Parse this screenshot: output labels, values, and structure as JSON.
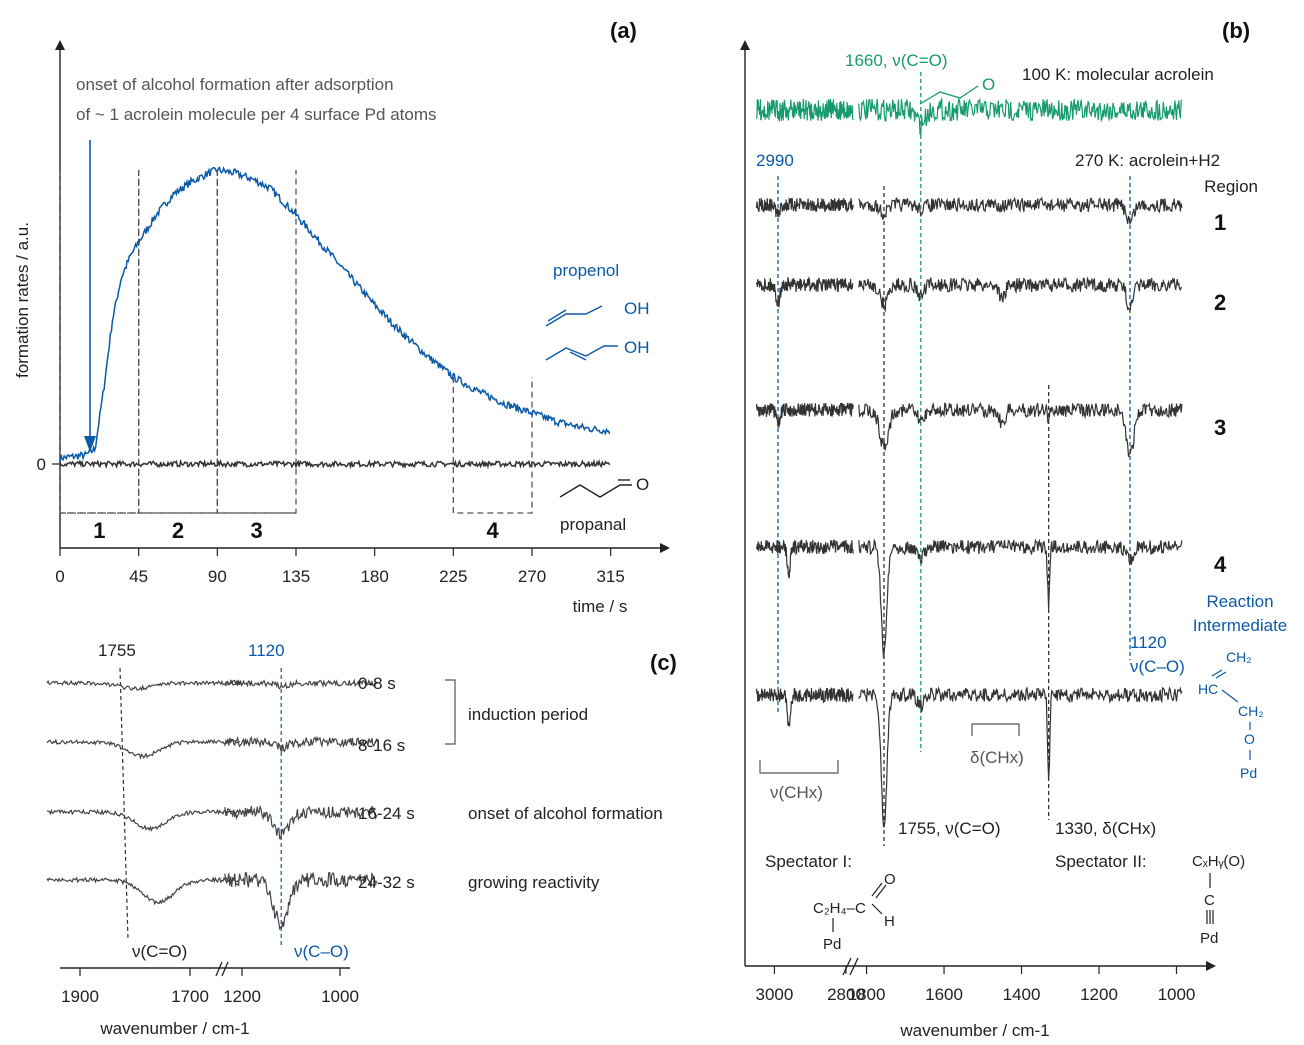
{
  "chart_data": [
    {
      "panel": "(a)",
      "type": "line",
      "xlabel": "time / s",
      "ylabel": "formation rates / a.u.",
      "xlim": [
        0,
        330
      ],
      "x_ticks": [
        "0",
        "45",
        "90",
        "135",
        "180",
        "225",
        "270",
        "315"
      ],
      "y_ticks": [
        "0"
      ],
      "annotation_lines": [
        "onset of alcohol formation after adsorption",
        "of ~ 1 acrolein molecule per 4 surface Pd atoms"
      ],
      "regions": [
        {
          "label": "1",
          "from": 0,
          "to": 45
        },
        {
          "label": "2",
          "from": 45,
          "to": 90
        },
        {
          "label": "3",
          "from": 90,
          "to": 135
        },
        {
          "label": "4",
          "from": 225,
          "to": 270
        }
      ],
      "series": [
        {
          "name": "propenol",
          "color": "#0b5aa8",
          "x": [
            0,
            15,
            20,
            25,
            30,
            35,
            40,
            45,
            55,
            65,
            75,
            85,
            90,
            100,
            110,
            120,
            135,
            150,
            165,
            180,
            195,
            210,
            225,
            240,
            255,
            270,
            285,
            300,
            315
          ],
          "y": [
            0.02,
            0.03,
            0.05,
            0.25,
            0.48,
            0.62,
            0.69,
            0.74,
            0.83,
            0.9,
            0.94,
            0.97,
            0.98,
            0.97,
            0.95,
            0.92,
            0.83,
            0.73,
            0.63,
            0.53,
            0.44,
            0.36,
            0.29,
            0.24,
            0.2,
            0.17,
            0.14,
            0.12,
            0.11
          ]
        },
        {
          "name": "propanal",
          "color": "#333333",
          "x": [
            0,
            315
          ],
          "y": [
            0,
            0
          ]
        }
      ],
      "molecule_labels": [
        "OH",
        "OH",
        "O"
      ],
      "arrow_at": 20
    },
    {
      "panel": "(b)",
      "type": "line",
      "xlabel": "wavenumber / cm-1",
      "x_ticks": [
        "3000",
        "2800",
        "1800",
        "1600",
        "1400",
        "1200",
        "1000"
      ],
      "header_labels": {
        "green_peak": "1660, ν(C=O)",
        "top": "100 K: molecular acrolein",
        "reaction": "270 K:  acrolein+H2",
        "region": "Region",
        "p2990": "2990"
      },
      "traces": [
        {
          "label": "",
          "color": "#159b6c",
          "peaks": [
            [
              1660,
              0.5,
              16
            ]
          ]
        },
        {
          "label": "1",
          "color": "#333333",
          "peaks": [
            [
              2990,
              0.35,
              8
            ],
            [
              1755,
              0.3,
              14
            ],
            [
              1660,
              0.15,
              12
            ],
            [
              1120,
              0.6,
              12
            ]
          ]
        },
        {
          "label": "2",
          "color": "#333333",
          "peaks": [
            [
              2990,
              0.6,
              8
            ],
            [
              1755,
              0.7,
              14
            ],
            [
              1660,
              0.4,
              12
            ],
            [
              1450,
              0.5,
              10
            ],
            [
              1120,
              0.8,
              12
            ]
          ]
        },
        {
          "label": "3",
          "color": "#333333",
          "peaks": [
            [
              2990,
              0.5,
              8
            ],
            [
              1755,
              1.3,
              16
            ],
            [
              1660,
              0.4,
              12
            ],
            [
              1450,
              0.5,
              10
            ],
            [
              1330,
              0.3,
              4
            ],
            [
              1120,
              1.6,
              14
            ]
          ]
        },
        {
          "label": "4",
          "color": "#333333",
          "peaks": [
            [
              2960,
              0.9,
              6
            ],
            [
              1755,
              3.8,
              10
            ],
            [
              1660,
              0.4,
              12
            ],
            [
              1330,
              2.0,
              4
            ],
            [
              1120,
              0.5,
              12
            ]
          ]
        },
        {
          "label": "",
          "color": "#333333",
          "peaks": [
            [
              2960,
              1.2,
              6
            ],
            [
              1755,
              4.8,
              10
            ],
            [
              1660,
              0.4,
              12
            ],
            [
              1330,
              3.0,
              4
            ]
          ]
        }
      ],
      "annotations": {
        "nu_chx": "ν(CHx)",
        "delta_chx": "δ(CHx)",
        "p1755": "1755, ν(C=O)",
        "p1330": "1330, δ(CHx)",
        "p1120": "1120",
        "nu_co": "ν(C–O)",
        "reaction_intermediate_1": "Reaction",
        "reaction_intermediate_2": "Intermediate",
        "spectator1": "Spectator I:",
        "spectator2": "Spectator II:"
      }
    },
    {
      "panel": "(c)",
      "type": "line",
      "xlabel": "wavenumber / cm-1",
      "x_ticks": [
        "1900",
        "1700",
        "1200",
        "1000"
      ],
      "traces": [
        {
          "label": "0-8 s",
          "depth_1755": 0.2,
          "depth_1120": 0.1
        },
        {
          "label": "8-16 s",
          "depth_1755": 0.5,
          "depth_1120": 0.2
        },
        {
          "label": "16-24 s",
          "depth_1755": 0.6,
          "depth_1120": 0.8
        },
        {
          "label": "24-32 s",
          "depth_1755": 0.8,
          "depth_1120": 1.6
        }
      ],
      "peak_labels": {
        "p1755": "1755",
        "p1120": "1120",
        "nu_co_eq": "ν(C=O)",
        "nu_co_single": "ν(C–O)"
      },
      "notes": {
        "induction": "induction period",
        "onset": "onset of alcohol formation",
        "growing": "growing reactivity"
      }
    }
  ],
  "colors": {
    "blue": "#0b5aa8",
    "green": "#159b6c",
    "dark": "#333333"
  }
}
